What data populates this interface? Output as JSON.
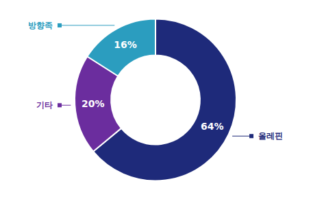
{
  "chart_data": {
    "type": "donut",
    "categories": [
      "올레핀",
      "기타",
      "방향족"
    ],
    "values": [
      64,
      20,
      16
    ],
    "value_labels": [
      "64%",
      "20%",
      "16%"
    ],
    "colors": [
      "#1e2a7a",
      "#6b2d9e",
      "#2b9dbf"
    ],
    "data_labels": true
  }
}
